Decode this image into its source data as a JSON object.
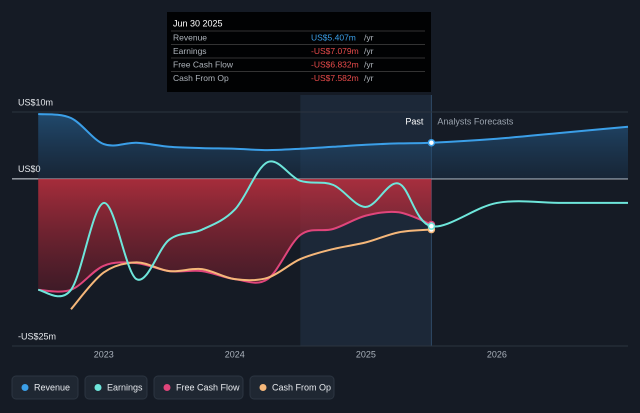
{
  "chart_data": {
    "type": "line",
    "x": [
      2022.5,
      2022.75,
      2023.0,
      2023.25,
      2023.5,
      2023.75,
      2024.0,
      2024.25,
      2024.5,
      2024.75,
      2025.0,
      2025.25,
      2025.5,
      2026.0,
      2026.5,
      2027.0
    ],
    "xlim": [
      2022.3,
      2027.0
    ],
    "xticks": [
      2023,
      2024,
      2025,
      2026
    ],
    "ylim": [
      -25,
      10
    ],
    "yticks": [
      {
        "value": 10,
        "label": "US$10m"
      },
      {
        "value": 0,
        "label": "US$0"
      },
      {
        "value": -25,
        "label": "-US$25m"
      }
    ],
    "forecast_start": 2025.5,
    "past_label": "Past",
    "forecast_label": "Analysts Forecasts",
    "series": [
      {
        "name": "Revenue",
        "color": "#3b9fe8",
        "values": [
          9.7,
          9.1,
          5.2,
          5.4,
          4.8,
          4.6,
          4.5,
          4.3,
          4.5,
          4.8,
          5.1,
          5.3,
          5.407,
          6.0,
          6.9,
          7.8
        ]
      },
      {
        "name": "Earnings",
        "color": "#6ee6db",
        "values": [
          -16.6,
          -16.6,
          -3.6,
          -15.0,
          -9.1,
          -7.6,
          -4.6,
          2.5,
          -0.3,
          -0.9,
          -4.2,
          -0.7,
          -7.079,
          -3.6,
          -3.6,
          -3.6
        ]
      },
      {
        "name": "Free Cash Flow",
        "color": "#e0457b",
        "values": [
          -16.6,
          -16.6,
          -13.0,
          -12.6,
          -13.8,
          -13.8,
          -15.0,
          -15.0,
          -8.4,
          -7.5,
          -5.5,
          -5.0,
          -6.832,
          null,
          null,
          null
        ]
      },
      {
        "name": "Cash From Op",
        "color": "#f5b77a",
        "values": [
          null,
          -19.5,
          -14.0,
          -12.5,
          -13.8,
          -13.5,
          -15.0,
          -14.8,
          -12.0,
          -10.5,
          -9.5,
          -8.0,
          -7.582,
          null,
          null,
          null
        ]
      }
    ]
  },
  "tooltip": {
    "date": "Jun 30 2025",
    "rows": [
      {
        "label": "Revenue",
        "value": "US$5.407m",
        "unit": "/yr"
      },
      {
        "label": "Earnings",
        "value": "-US$7.079m",
        "unit": "/yr"
      },
      {
        "label": "Free Cash Flow",
        "value": "-US$6.832m",
        "unit": "/yr"
      },
      {
        "label": "Cash From Op",
        "value": "-US$7.582m",
        "unit": "/yr"
      }
    ]
  }
}
